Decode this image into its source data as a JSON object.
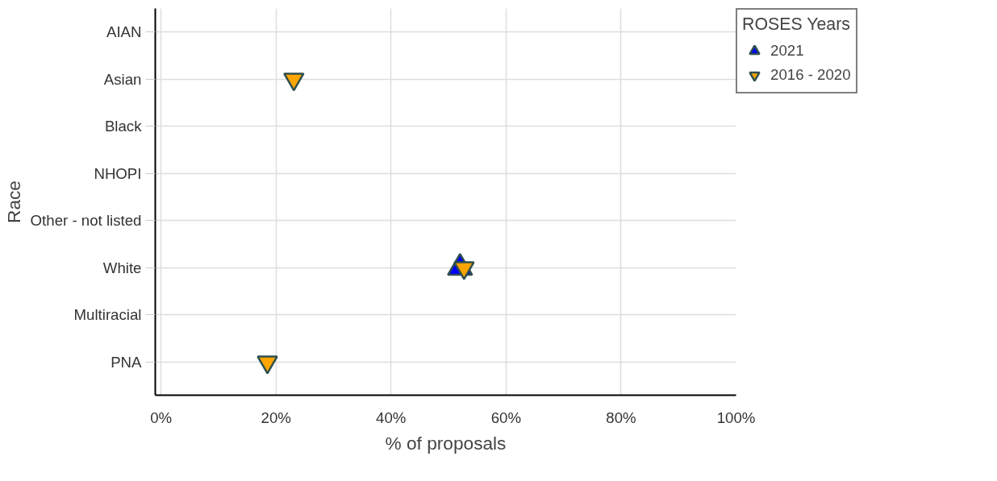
{
  "chart_data": {
    "type": "scatter",
    "xlabel": "% of proposals",
    "ylabel": "Race",
    "legend_title": "ROSES Years",
    "categories": [
      "AIAN",
      "Asian",
      "Black",
      "NHOPI",
      "Other - not listed",
      "White",
      "Multiracial",
      "PNA"
    ],
    "series": [
      {
        "name": "2021",
        "color": "#0000ff",
        "marker": "triangle",
        "values": [
          null,
          null,
          null,
          null,
          null,
          52.0,
          null,
          null
        ]
      },
      {
        "name": "2016 - 2020",
        "color": "#ffa500",
        "values": [
          null,
          23.1,
          null,
          null,
          null,
          52.7,
          null,
          18.5
        ]
      }
    ],
    "orientation": "horizontal",
    "xlim": [
      -1,
      100
    ],
    "xticks": [
      {
        "value": 0,
        "label": "0%"
      },
      {
        "value": 20,
        "label": "20%"
      },
      {
        "value": 40,
        "label": "40%"
      },
      {
        "value": 60,
        "label": "60%"
      },
      {
        "value": 80,
        "label": "80%"
      },
      {
        "value": 100,
        "label": "100%"
      }
    ],
    "grid": true,
    "legend": "top right"
  }
}
